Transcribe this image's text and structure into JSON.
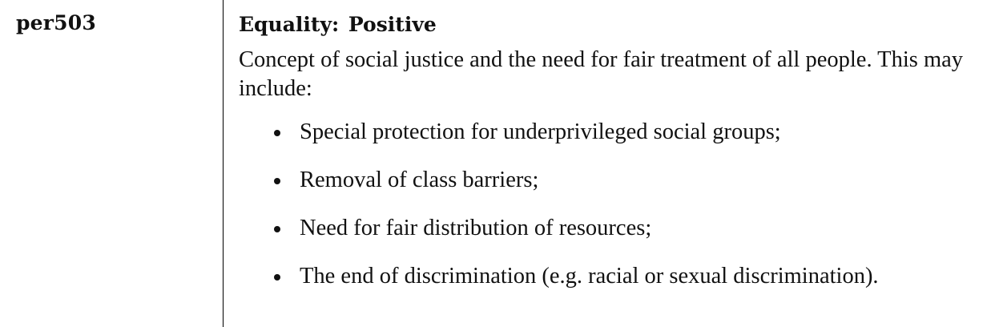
{
  "entry": {
    "code": "per503",
    "title": "Equality: Positive",
    "description": "Concept of social justice and the need for fair treatment of all people. This may include:",
    "items": [
      "Special protection for underprivileged social groups;",
      "Removal of class barriers;",
      "Need for fair distribution of resources;",
      "The end of discrimination (e.g. racial or sexual discrimination)."
    ]
  }
}
